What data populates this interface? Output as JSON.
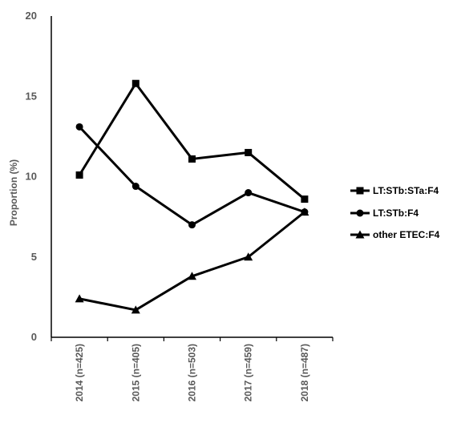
{
  "chart_data": {
    "type": "line",
    "title": "",
    "xlabel": "",
    "ylabel": "Proportion (%)",
    "ylim": [
      0,
      20
    ],
    "yticks": [
      0,
      5,
      10,
      15,
      20
    ],
    "grid": false,
    "legend_position": "right",
    "categories": [
      "2014 (n=425)",
      "2015 (n=405)",
      "2016 (n=503)",
      "2017 (n=459)",
      "2018 (n=487)"
    ],
    "series": [
      {
        "name": "LT:STb:STa:F4",
        "marker": "square",
        "color": "#000000",
        "values": [
          10.1,
          15.8,
          11.1,
          11.5,
          8.6
        ]
      },
      {
        "name": "LT:STb:F4",
        "marker": "circle",
        "color": "#000000",
        "values": [
          13.1,
          9.4,
          7.0,
          9.0,
          7.8
        ]
      },
      {
        "name": "other ETEC:F4",
        "marker": "triangle",
        "color": "#000000",
        "values": [
          2.4,
          1.7,
          3.8,
          5.0,
          7.8
        ]
      }
    ]
  }
}
